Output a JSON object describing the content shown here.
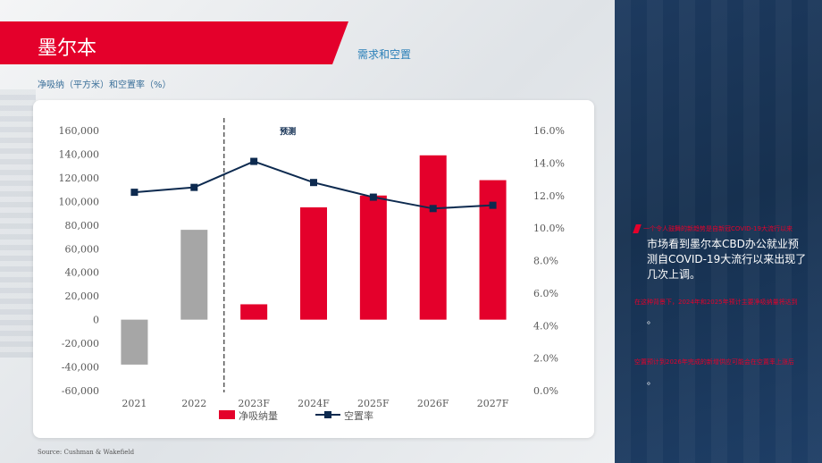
{
  "header": {
    "title": "墨尔本",
    "subtitle": "需求和空置",
    "chart_label": "净吸纳（平方米）和空置率（%）",
    "source": "Source: Cushman & Wakefield"
  },
  "chart_data": {
    "type": "bar",
    "categories": [
      "2021",
      "2022",
      "2023F",
      "2024F",
      "2025F",
      "2026F",
      "2027F"
    ],
    "series": [
      {
        "name": "净吸纳量",
        "kind": "bar",
        "axis": "left",
        "values": [
          -38000,
          76000,
          13000,
          95000,
          105000,
          139000,
          118000
        ],
        "colors": [
          "#a6a6a6",
          "#a6a6a6",
          "#e4002b",
          "#e4002b",
          "#e4002b",
          "#e4002b",
          "#e4002b"
        ]
      },
      {
        "name": "空置率",
        "kind": "line",
        "axis": "right",
        "values": [
          12.2,
          12.5,
          14.1,
          12.8,
          11.9,
          11.2,
          11.4
        ],
        "color": "#0d2a4f"
      }
    ],
    "left_axis": {
      "min": -60000,
      "max": 160000,
      "ticks": [
        "160,000",
        "140,000",
        "120,000",
        "100,000",
        "80,000",
        "60,000",
        "40,000",
        "20,000",
        "0",
        "-20,000",
        "-40,000",
        "-60,000"
      ]
    },
    "right_axis": {
      "min": 0,
      "max": 16,
      "ticks": [
        "16.0%",
        "14.0%",
        "12.0%",
        "10.0%",
        "8.0%",
        "6.0%",
        "4.0%",
        "2.0%",
        "0.0%"
      ]
    },
    "forecast_label": "预测",
    "legend": [
      "净吸纳量",
      "空置率"
    ],
    "legend_position": "bottom"
  },
  "sidebar": {
    "note1": "一个令人鼓舞的新趋势是自新冠COVID-19大流行以来",
    "text1": "市场看到墨尔本CBD办公就业预测自COVID-19大流行以来出现了几次上调。",
    "note2": "在这种背景下，2024年和2025年预计主要净吸纳量将达到",
    "dot2": "。",
    "note3": "空置预计到2026年完成的新增供应可能会在空置率上涨后",
    "dot3": "。"
  }
}
